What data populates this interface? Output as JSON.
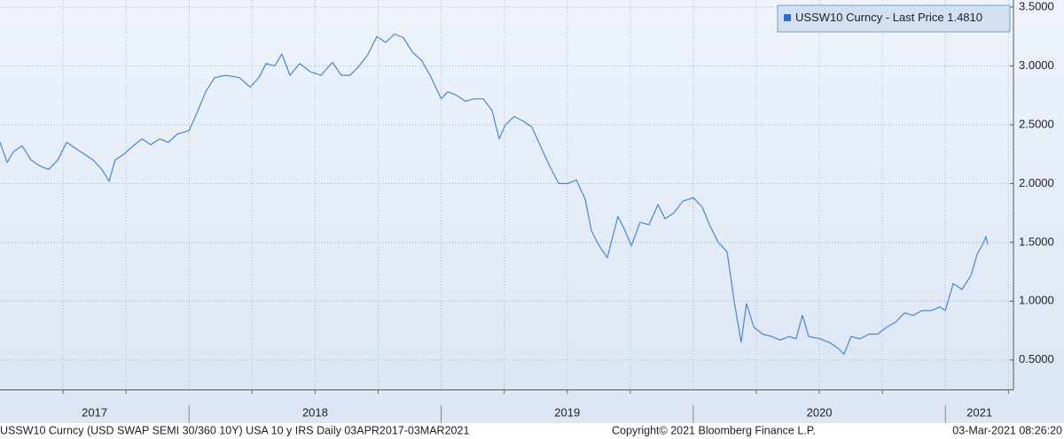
{
  "chart_data": {
    "type": "line",
    "footer": {
      "description": "USSW10 Curncy (USD SWAP SEMI 30/360 10Y) USA 10 y IRS  Daily 03APR2017-03MAR2021",
      "copyright": "Copyright© 2021 Bloomberg Finance L.P.",
      "timestamp": "03-Mar-2021 08:26:20"
    },
    "last_price": {
      "value": 1.481,
      "label": "1.4810"
    },
    "xlim": [
      2017.25,
      2021.27
    ],
    "xticks": [
      {
        "value": 2017.25,
        "label": "2017"
      },
      {
        "value": 2018,
        "label": "2018"
      },
      {
        "value": 2019,
        "label": "2019"
      },
      {
        "value": 2020,
        "label": "2020"
      },
      {
        "value": 2021,
        "label": "2021"
      }
    ],
    "x_minor_ticks": [
      2017.5,
      2017.75,
      2018.25,
      2018.5,
      2018.75,
      2019.25,
      2019.5,
      2019.75,
      2020.25,
      2020.5,
      2020.75,
      2021.25
    ],
    "ylim": [
      0.25,
      3.56
    ],
    "yticks": [
      {
        "value": 0.5,
        "label": "0.5000"
      },
      {
        "value": 1,
        "label": "1.0000"
      },
      {
        "value": 1.5,
        "label": "1.5000"
      },
      {
        "value": 2,
        "label": "2.0000"
      },
      {
        "value": 2.5,
        "label": "2.5000"
      },
      {
        "value": 3,
        "label": "3.0000"
      },
      {
        "value": 3.5,
        "label": "3.5000"
      }
    ],
    "grid": true,
    "legend": "top-right",
    "x": [
      2017.25,
      2017.278,
      2017.303,
      2017.338,
      2017.373,
      2017.408,
      2017.443,
      2017.479,
      2017.514,
      2017.549,
      2017.584,
      2017.619,
      2017.654,
      2017.683,
      2017.707,
      2017.742,
      2017.778,
      2017.813,
      2017.848,
      2017.883,
      2017.918,
      2017.953,
      2018.0,
      2018.031,
      2018.066,
      2018.101,
      2018.147,
      2018.2,
      2018.242,
      2018.277,
      2018.305,
      2018.34,
      2018.368,
      2018.4,
      2018.439,
      2018.481,
      2018.523,
      2018.569,
      2018.604,
      2018.639,
      2018.675,
      2018.71,
      2018.745,
      2018.78,
      2018.815,
      2018.85,
      2018.885,
      2018.921,
      2018.956,
      2019.0,
      2019.026,
      2019.061,
      2019.096,
      2019.132,
      2019.167,
      2019.202,
      2019.23,
      2019.255,
      2019.29,
      2019.325,
      2019.36,
      2019.402,
      2019.43,
      2019.466,
      2019.501,
      2019.536,
      2019.571,
      2019.596,
      2019.624,
      2019.659,
      2019.701,
      2019.729,
      2019.754,
      2019.789,
      2019.824,
      2019.86,
      2019.888,
      2019.923,
      2019.958,
      2020.0,
      2020.036,
      2020.064,
      2020.099,
      2020.134,
      2020.162,
      2020.19,
      2020.211,
      2020.24,
      2020.275,
      2020.31,
      2020.345,
      2020.38,
      2020.408,
      2020.433,
      2020.458,
      2020.503,
      2020.539,
      2020.574,
      2020.598,
      2020.626,
      2020.661,
      2020.697,
      2020.732,
      2020.767,
      2020.802,
      2020.837,
      2020.872,
      2020.908,
      2020.943,
      2020.978,
      2021.0,
      2021.031,
      2021.066,
      2021.102,
      2021.126,
      2021.147,
      2021.161,
      2021.168
    ],
    "series": [
      {
        "name": "USSW10 Curncy  - Last Price",
        "color": "#4a86d0",
        "values": [
          2.35,
          2.18,
          2.27,
          2.32,
          2.2,
          2.15,
          2.12,
          2.2,
          2.35,
          2.3,
          2.25,
          2.2,
          2.12,
          2.02,
          2.2,
          2.25,
          2.32,
          2.38,
          2.33,
          2.38,
          2.35,
          2.42,
          2.45,
          2.6,
          2.78,
          2.9,
          2.92,
          2.9,
          2.82,
          2.9,
          3.02,
          3.0,
          3.1,
          2.92,
          3.02,
          2.95,
          2.92,
          3.03,
          2.92,
          2.92,
          3.0,
          3.1,
          3.25,
          3.2,
          3.27,
          3.24,
          3.12,
          3.05,
          2.92,
          2.72,
          2.78,
          2.75,
          2.7,
          2.72,
          2.72,
          2.62,
          2.38,
          2.5,
          2.57,
          2.53,
          2.48,
          2.28,
          2.15,
          2.0,
          2.0,
          2.03,
          1.87,
          1.6,
          1.48,
          1.37,
          1.72,
          1.6,
          1.47,
          1.67,
          1.65,
          1.82,
          1.7,
          1.75,
          1.85,
          1.88,
          1.8,
          1.65,
          1.5,
          1.42,
          1.0,
          0.65,
          0.98,
          0.78,
          0.72,
          0.7,
          0.67,
          0.7,
          0.68,
          0.88,
          0.7,
          0.68,
          0.65,
          0.6,
          0.55,
          0.7,
          0.68,
          0.72,
          0.72,
          0.78,
          0.82,
          0.9,
          0.88,
          0.92,
          0.92,
          0.95,
          0.92,
          1.15,
          1.1,
          1.22,
          1.4,
          1.48,
          1.55,
          1.481
        ]
      }
    ]
  }
}
